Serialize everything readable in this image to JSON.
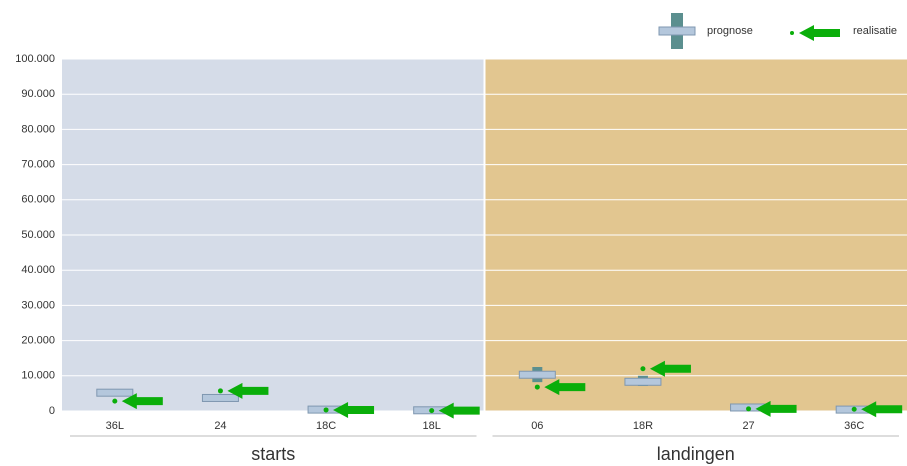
{
  "chart_data": {
    "type": "range",
    "groups": [
      {
        "name": "starts",
        "color": "#d5dce8",
        "categories": [
          "36L",
          "24",
          "18C",
          "18L"
        ]
      },
      {
        "name": "landingen",
        "color": "#e2c690",
        "categories": [
          "06",
          "18R",
          "27",
          "36C"
        ]
      }
    ],
    "series": [
      {
        "name": "prognose",
        "color": "#b4c7dc",
        "range_color": "#5b8f8f",
        "values": [
          5200,
          3700,
          400,
          200,
          10300,
          8300,
          1000,
          400
        ],
        "low": [
          4500,
          3200,
          100,
          0,
          8200,
          7100,
          300,
          100
        ],
        "high": [
          6000,
          4300,
          700,
          400,
          12500,
          10000,
          1700,
          800
        ]
      },
      {
        "name": "realisatie",
        "color": "#0aae0a",
        "values": [
          2800,
          5700,
          300,
          100,
          6800,
          12000,
          600,
          500
        ]
      }
    ],
    "ylim": [
      0,
      100000
    ],
    "yticks": [
      0,
      {
        "value": 10000,
        "label": "10.000"
      },
      {
        "value": 20000,
        "label": "20.000"
      },
      {
        "value": 30000,
        "label": "30.000"
      },
      {
        "value": 40000,
        "label": "40.000"
      },
      {
        "value": 50000,
        "label": "50.000"
      },
      {
        "value": 60000,
        "label": "60.000"
      },
      {
        "value": 70000,
        "label": "70.000"
      },
      {
        "value": 80000,
        "label": "80.000"
      },
      {
        "value": 90000,
        "label": "90.000"
      },
      {
        "value": 100000,
        "label": "100.000"
      }
    ],
    "grid": true
  }
}
